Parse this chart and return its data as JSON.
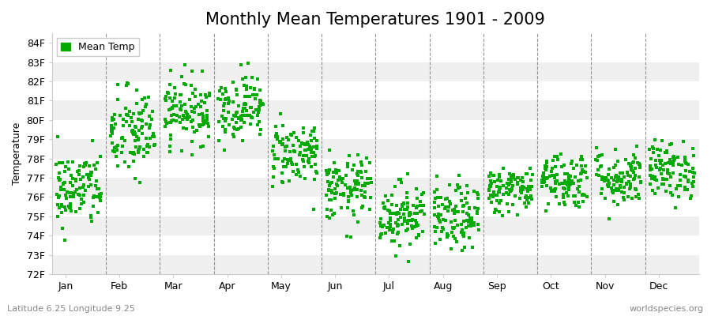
{
  "title": "Monthly Mean Temperatures 1901 - 2009",
  "ylabel": "Temperature",
  "xlabel_labels": [
    "Jan",
    "Feb",
    "Mar",
    "Apr",
    "May",
    "Jun",
    "Jul",
    "Aug",
    "Sep",
    "Oct",
    "Nov",
    "Dec"
  ],
  "ytick_labels": [
    "72F",
    "73F",
    "74F",
    "75F",
    "76F",
    "77F",
    "78F",
    "79F",
    "80F",
    "81F",
    "82F",
    "83F",
    "84F"
  ],
  "ylim": [
    72,
    84.5
  ],
  "legend_label": "Mean Temp",
  "dot_color": "#00aa00",
  "dot_size": 5,
  "background_color": "#ffffff",
  "plot_bg_color": "#ffffff",
  "subtitle": "Latitude 6.25 Longitude 9.25",
  "watermark": "worldspecies.org",
  "title_fontsize": 15,
  "label_fontsize": 9,
  "monthly_means": [
    76.4,
    79.3,
    80.5,
    80.7,
    78.3,
    76.4,
    75.1,
    74.9,
    76.4,
    76.9,
    77.0,
    77.4
  ],
  "monthly_stds": [
    1.0,
    1.2,
    0.85,
    0.85,
    0.85,
    0.85,
    0.85,
    0.85,
    0.6,
    0.75,
    0.75,
    0.75
  ],
  "n_years": 109,
  "seed": 42,
  "band_colors": [
    "#f0f0f0",
    "#ffffff"
  ]
}
